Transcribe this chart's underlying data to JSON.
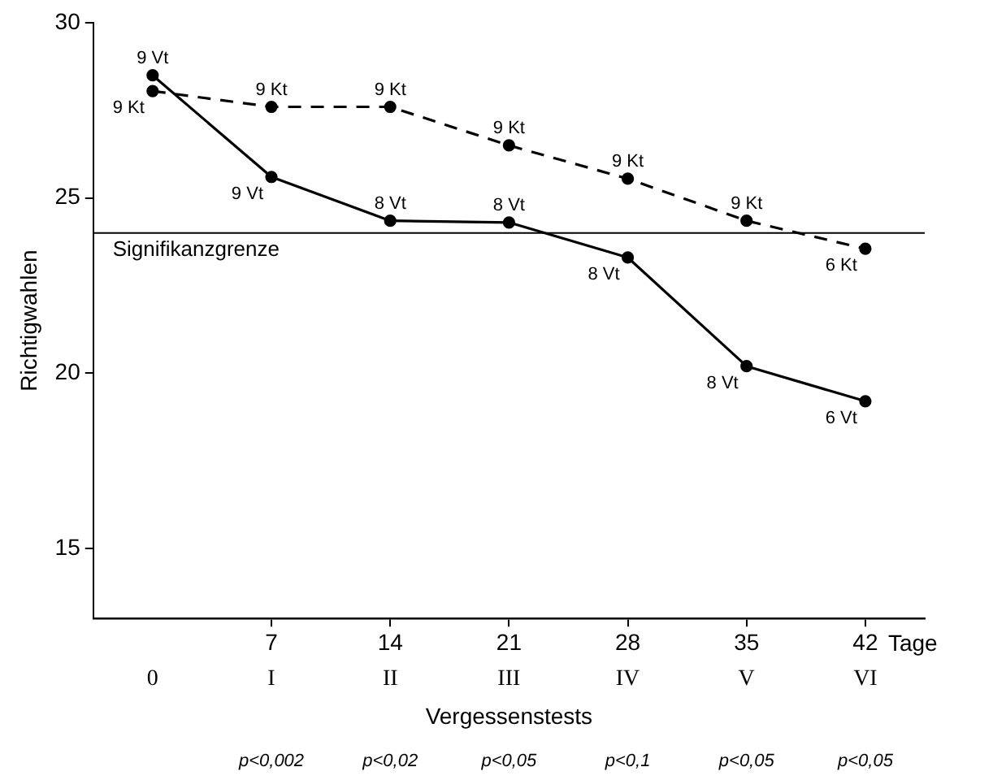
{
  "chart_data": {
    "type": "line",
    "xlabel": "Vergessenstests",
    "ylabel": "Richtigwahlen",
    "x2label": "Tage",
    "categories": [
      "0",
      "I",
      "II",
      "III",
      "IV",
      "V",
      "VI"
    ],
    "series": [
      {
        "color": "#000000",
        "line_style": "solid",
        "values": [
          28.5,
          25.6,
          24.35,
          24.3,
          23.3,
          20.2,
          19.2
        ]
      },
      {
        "color": "#000000",
        "line_style": "dashed",
        "values": [
          28.05,
          27.6,
          27.6,
          26.5,
          25.55,
          24.35,
          23.55
        ]
      }
    ],
    "ylim": [
      13,
      30
    ],
    "yticks": [
      15,
      20,
      25,
      30
    ],
    "x2lim": [
      -3.5,
      45.5
    ],
    "x2ticks": [
      7,
      14,
      21,
      28,
      35,
      42
    ],
    "marker": "circle",
    "grid": false,
    "legend": false,
    "ref_lines": [
      {
        "axis": "y",
        "value": 24,
        "label": "Signifikanzgrenze",
        "color": "#000000"
      }
    ],
    "annotations": [
      {
        "text": "9 Vt",
        "x": "0",
        "y": 28.5
      },
      {
        "text": "9 Kt",
        "x": "0",
        "y": 28.05
      },
      {
        "text": "9 Vt",
        "x": "I",
        "y": 25.6
      },
      {
        "text": "9 Kt",
        "x": "I",
        "y": 27.6
      },
      {
        "text": "8 Vt",
        "x": "II",
        "y": 24.35
      },
      {
        "text": "9 Kt",
        "x": "II",
        "y": 27.6
      },
      {
        "text": "8 Vt",
        "x": "III",
        "y": 24.3
      },
      {
        "text": "9 Kt",
        "x": "III",
        "y": 26.5
      },
      {
        "text": "8 Vt",
        "x": "IV",
        "y": 23.3
      },
      {
        "text": "9 Kt",
        "x": "IV",
        "y": 25.55
      },
      {
        "text": "8 Vt",
        "x": "V",
        "y": 20.2
      },
      {
        "text": "9 Kt",
        "x": "V",
        "y": 24.35
      },
      {
        "text": "6 Vt",
        "x": "VI",
        "y": 19.2
      },
      {
        "text": "6 Kt",
        "x": "VI",
        "y": 23.55
      },
      "p<0,002",
      "p<0,02",
      "p<0,05",
      "p<0,1",
      "p<0,05",
      "p<0,05"
    ]
  }
}
